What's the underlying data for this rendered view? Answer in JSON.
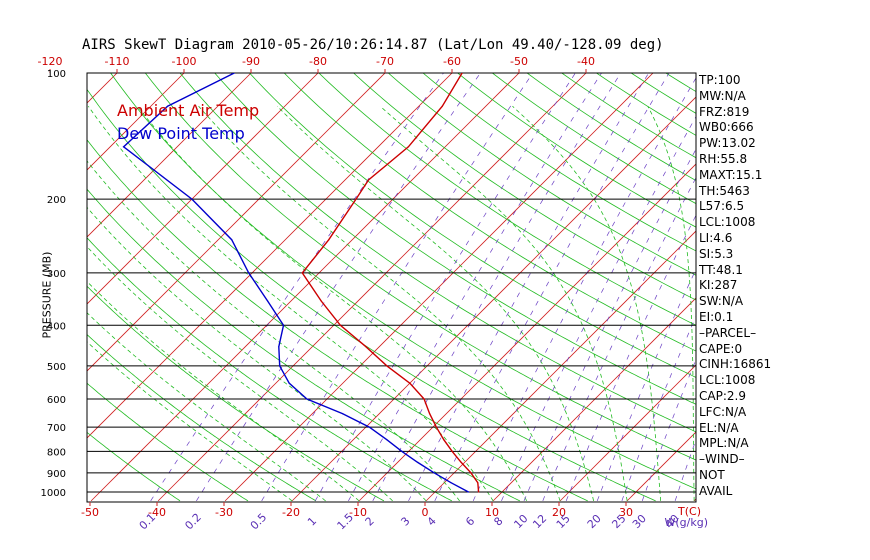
{
  "title": "AIRS SkewT Diagram 2010-05-26/10:26:14.87 (Lat/Lon 49.40/-128.09 deg)",
  "legend": {
    "ambient": "Ambient Air Temp",
    "dewpoint": "Dew Point Temp",
    "ambient_color": "#cc0000",
    "dewpoint_color": "#0000cc"
  },
  "chart_data": {
    "type": "line",
    "skew_t": true,
    "yscale": "log",
    "ylabel": "PRESSURE (MB)",
    "xlabel_bottom": "T(C)",
    "mixing_ratio_label": "W(g/kg)",
    "pressure_ticks": [
      "100",
      "200",
      "300",
      "400",
      "500",
      "600",
      "700",
      "800",
      "900",
      "1000"
    ],
    "temp_ticks_top": [
      "-120",
      "-110",
      "-100",
      "-90",
      "-80",
      "-70",
      "-60",
      "-50",
      "-40"
    ],
    "temp_ticks_bottom": [
      "-50",
      "-40",
      "-30",
      "-20",
      "-10",
      "0",
      "10",
      "20",
      "30"
    ],
    "mixing_ratio_ticks": [
      "0.1",
      "0.2",
      "0.5",
      "1",
      "1.5",
      "2",
      "3",
      "4",
      "6",
      "8",
      "10",
      "12",
      "15",
      "20",
      "25",
      "30",
      "40"
    ],
    "series": [
      {
        "name": "Ambient Air Temp",
        "color": "#cc0000",
        "points": [
          {
            "p": 1000,
            "t": 6.5
          },
          {
            "p": 950,
            "t": 5.0
          },
          {
            "p": 900,
            "t": 2.5
          },
          {
            "p": 850,
            "t": -0.5
          },
          {
            "p": 800,
            "t": -3.5
          },
          {
            "p": 750,
            "t": -6.5
          },
          {
            "p": 700,
            "t": -9.5
          },
          {
            "p": 650,
            "t": -12.5
          },
          {
            "p": 600,
            "t": -15.5
          },
          {
            "p": 550,
            "t": -20.0
          },
          {
            "p": 500,
            "t": -26.0
          },
          {
            "p": 450,
            "t": -32.0
          },
          {
            "p": 400,
            "t": -39.0
          },
          {
            "p": 350,
            "t": -45.5
          },
          {
            "p": 300,
            "t": -52.5
          },
          {
            "p": 250,
            "t": -53.5
          },
          {
            "p": 200,
            "t": -55.5
          },
          {
            "p": 180,
            "t": -56.5
          },
          {
            "p": 150,
            "t": -55.5
          },
          {
            "p": 120,
            "t": -56.5
          },
          {
            "p": 100,
            "t": -58.5
          }
        ]
      },
      {
        "name": "Dew Point Temp",
        "color": "#0000cc",
        "points": [
          {
            "p": 1000,
            "t": 5.0
          },
          {
            "p": 950,
            "t": 1.0
          },
          {
            "p": 900,
            "t": -3.0
          },
          {
            "p": 850,
            "t": -7.0
          },
          {
            "p": 800,
            "t": -11.0
          },
          {
            "p": 750,
            "t": -15.0
          },
          {
            "p": 700,
            "t": -19.5
          },
          {
            "p": 650,
            "t": -25.5
          },
          {
            "p": 600,
            "t": -33.0
          },
          {
            "p": 550,
            "t": -38.0
          },
          {
            "p": 500,
            "t": -42.0
          },
          {
            "p": 450,
            "t": -45.0
          },
          {
            "p": 400,
            "t": -47.5
          },
          {
            "p": 350,
            "t": -53.5
          },
          {
            "p": 300,
            "t": -60.5
          },
          {
            "p": 250,
            "t": -68.0
          },
          {
            "p": 200,
            "t": -80.0
          },
          {
            "p": 150,
            "t": -98.0
          },
          {
            "p": 120,
            "t": -97.5
          },
          {
            "p": 100,
            "t": -92.5
          }
        ]
      }
    ]
  },
  "stats": [
    "TP:100",
    "MW:N/A",
    "FRZ:819",
    "WB0:666",
    "PW:13.02",
    "RH:55.8",
    "MAXT:15.1",
    "TH:5463",
    "L57:6.5",
    "LCL:1008",
    "LI:4.6",
    "SI:5.3",
    "TT:48.1",
    "KI:287",
    "SW:N/A",
    "EI:0.1",
    "–PARCEL–",
    "CAPE:0",
    "CINH:16861",
    "LCL:1008",
    "CAP:2.9",
    "LFC:N/A",
    "EL:N/A",
    "MPL:N/A",
    "–WIND–",
    "NOT",
    "AVAIL"
  ]
}
